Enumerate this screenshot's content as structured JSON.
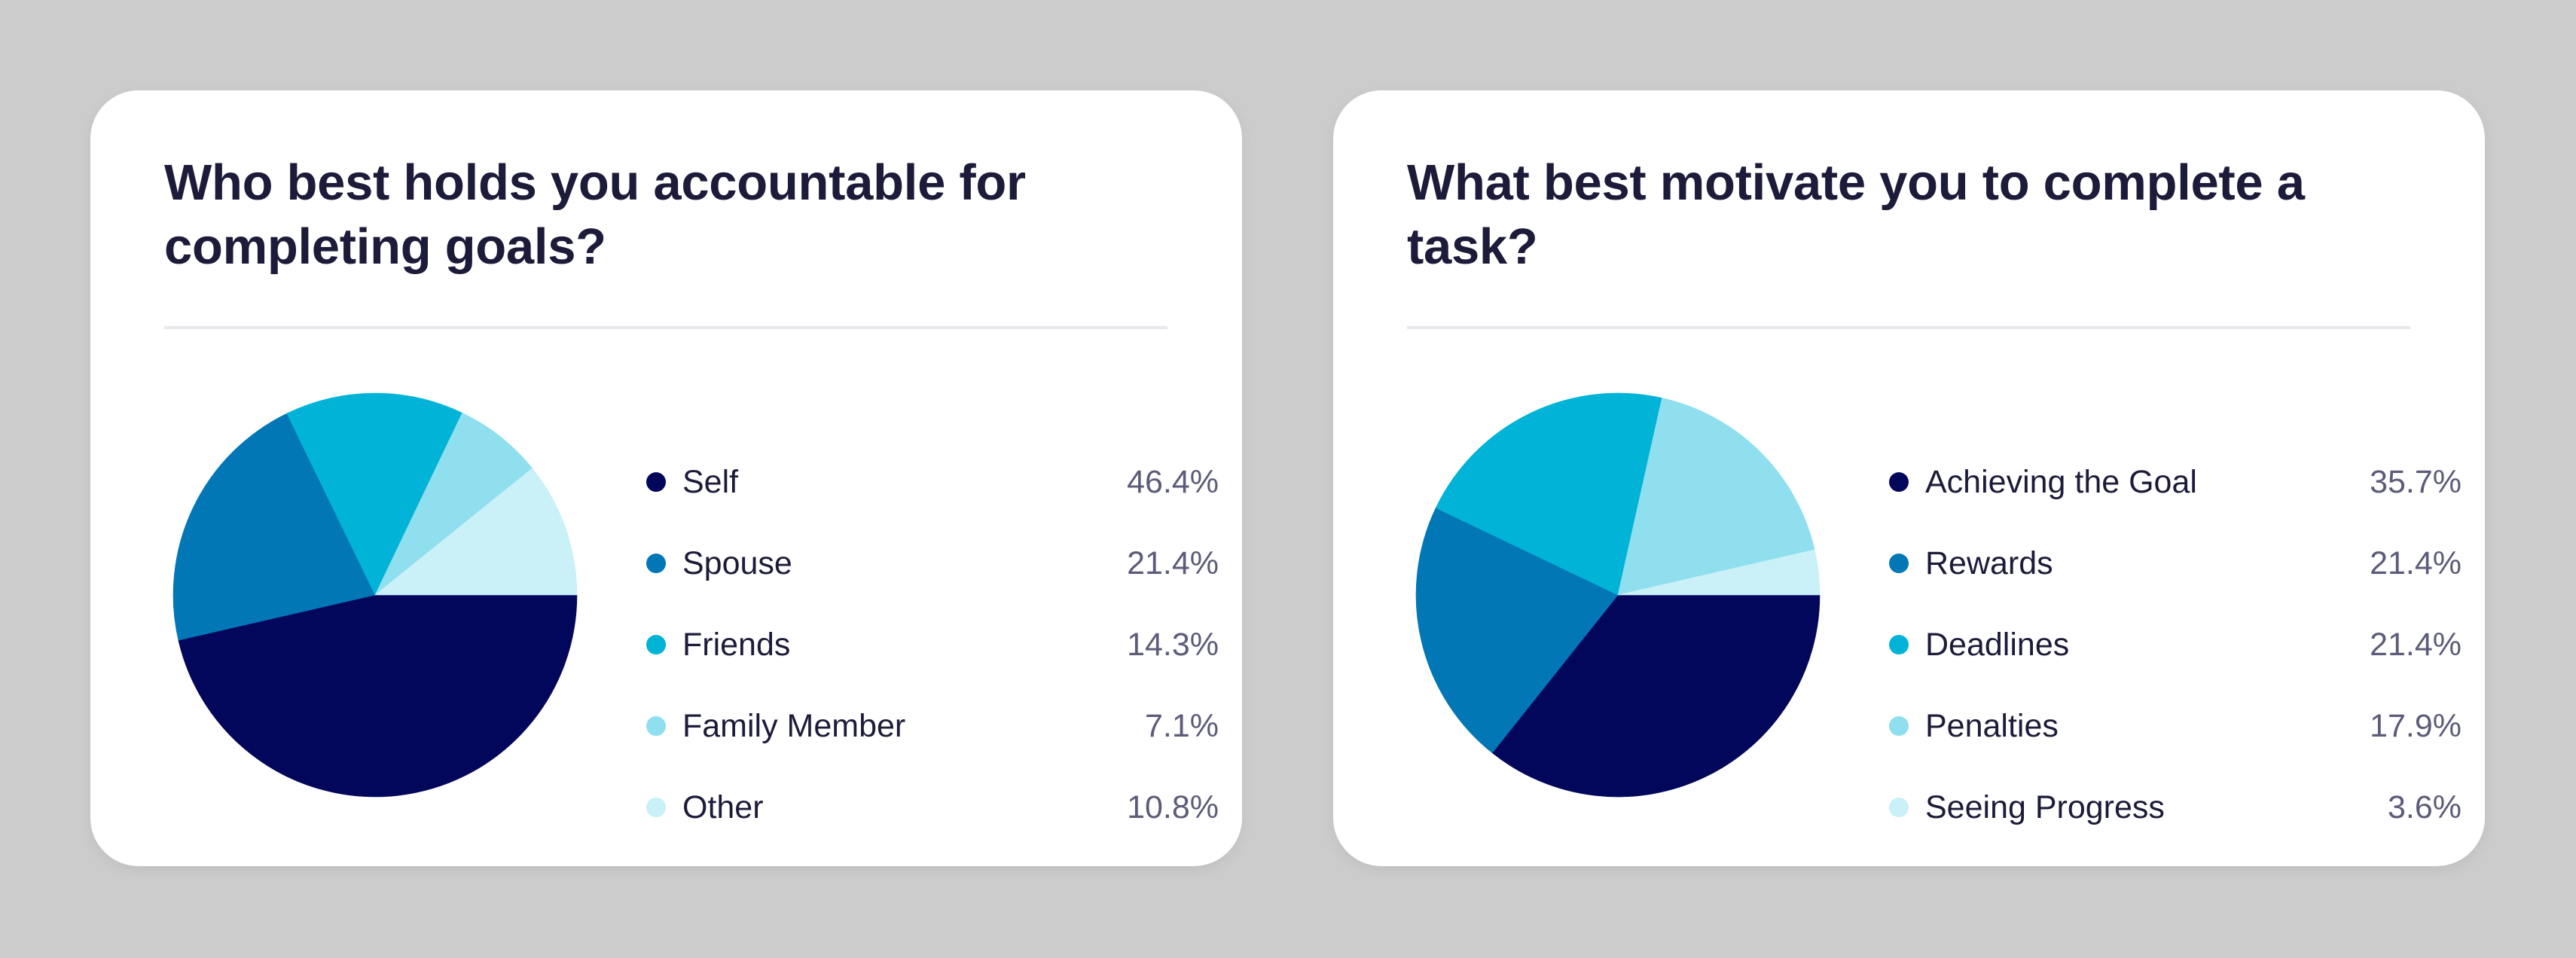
{
  "colors": {
    "background": "#cccccc",
    "card": "#ffffff",
    "title": "#1c1c3a",
    "divider": "#e8e8ee",
    "label": "#1c1c3a",
    "value": "#5c5c7a"
  },
  "chart_data": [
    {
      "type": "pie",
      "title": "Who best holds you accountable for completing goals?",
      "labels": [
        "Self",
        "Spouse",
        "Friends",
        "Family Member",
        "Other"
      ],
      "values": [
        46.4,
        21.4,
        14.3,
        7.1,
        10.8
      ],
      "value_labels": [
        "46.4%",
        "21.4%",
        "14.3%",
        "7.1%",
        "10.8%"
      ],
      "colors": [
        "#02075b",
        "#0277b6",
        "#00b3d7",
        "#8fdfef",
        "#caf0f8"
      ],
      "legend": "right"
    },
    {
      "type": "pie",
      "title": "What best motivate you to complete a task?",
      "labels": [
        "Achieving the Goal",
        "Rewards",
        "Deadlines",
        "Penalties",
        "Seeing Progress"
      ],
      "values": [
        35.7,
        21.4,
        21.4,
        17.9,
        3.6
      ],
      "value_labels": [
        "35.7%",
        "21.4%",
        "21.4%",
        "17.9%",
        "3.6%"
      ],
      "colors": [
        "#02075b",
        "#0277b6",
        "#00b3d7",
        "#8fdfef",
        "#caf0f8"
      ],
      "legend": "right"
    }
  ]
}
